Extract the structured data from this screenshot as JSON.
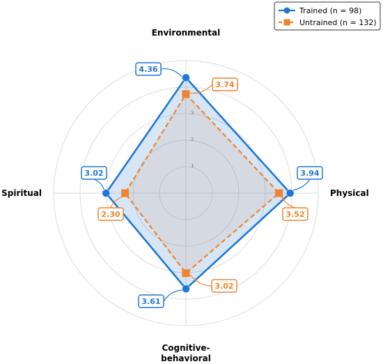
{
  "chart_data": {
    "type": "radar",
    "axes": [
      "Environmental",
      "Physical",
      "Cognitive-behavioral",
      "Spiritual"
    ],
    "axis_label_lines": [
      [
        "Environmental"
      ],
      [
        "Physical"
      ],
      [
        "Cognitive-",
        "behavioral"
      ],
      [
        "Spiritual"
      ]
    ],
    "r_ticks": [
      1,
      2,
      3
    ],
    "r_max": 5,
    "grid": true,
    "legend_position": "top-right",
    "series": [
      {
        "name": "Trained (n = 98)",
        "values": [
          4.36,
          3.94,
          3.61,
          3.02
        ],
        "value_labels": [
          "4.36",
          "3.94",
          "3.61",
          "3.02"
        ],
        "color": "#1f77d4",
        "marker": "circle",
        "line_style": "solid"
      },
      {
        "name": "Untrained (n = 132)",
        "values": [
          3.74,
          3.52,
          3.02,
          2.3
        ],
        "value_labels": [
          "3.74",
          "3.52",
          "3.02",
          "2.30"
        ],
        "color": "#f0832c",
        "marker": "square",
        "line_style": "dashed"
      }
    ]
  }
}
